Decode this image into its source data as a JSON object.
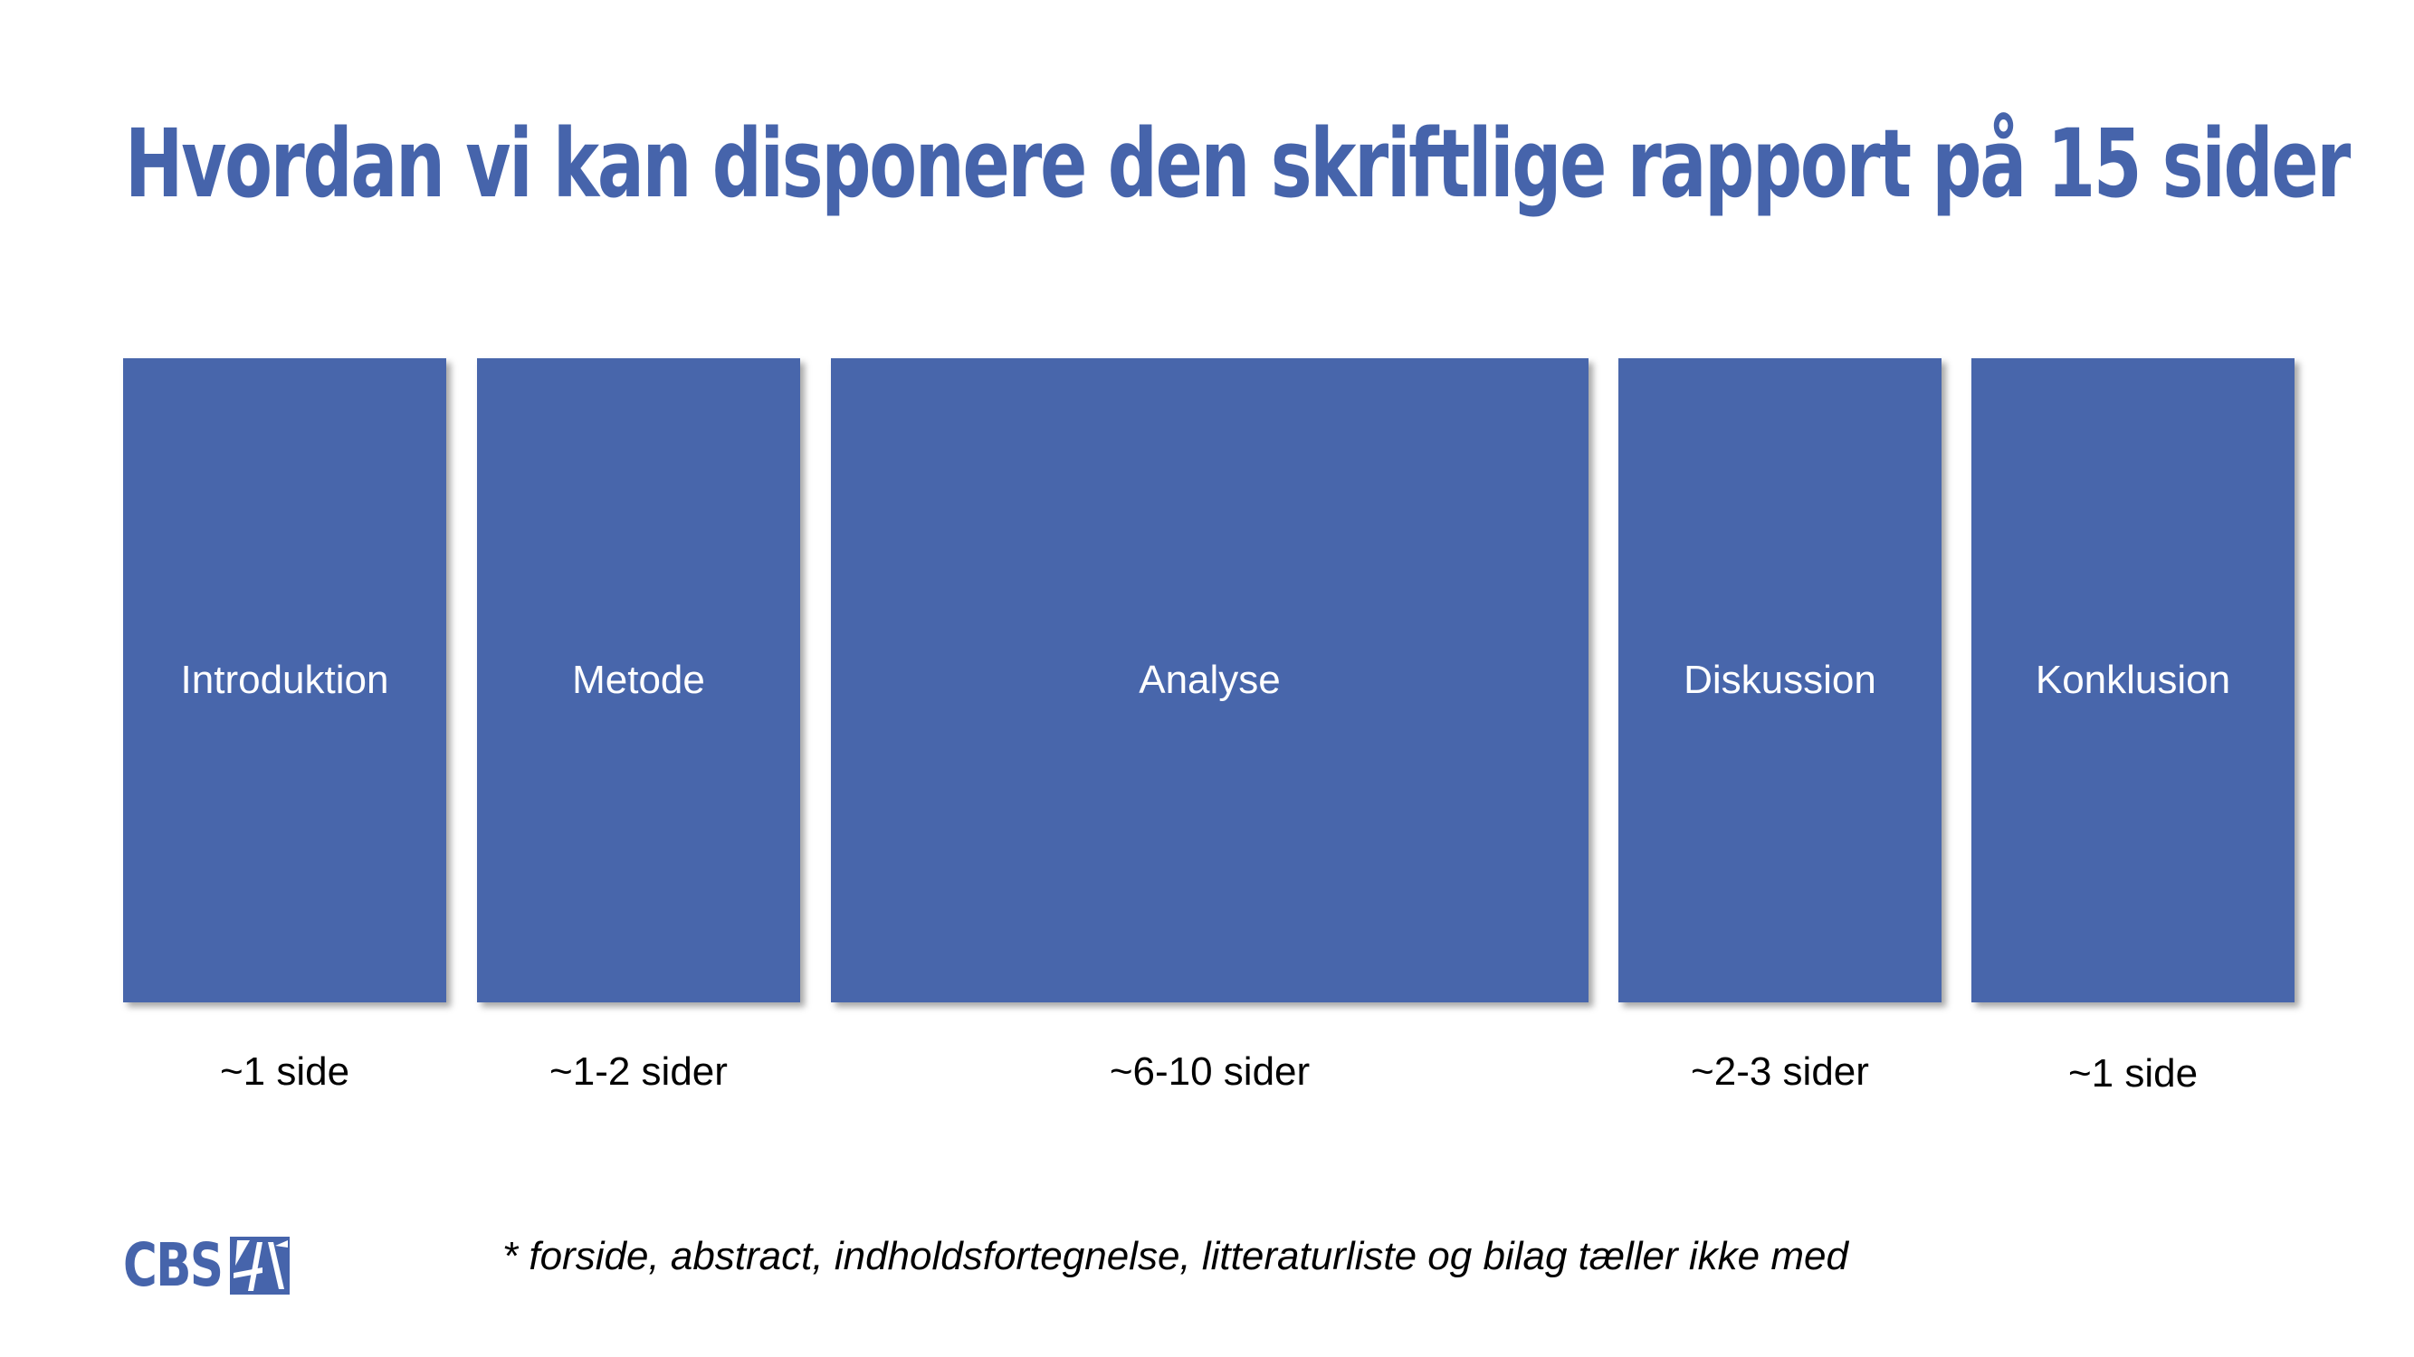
{
  "title": "Hvordan vi kan disponere den skriftlige rapport på 15 sider",
  "sections": [
    {
      "label": "Introduktion",
      "pages": "~1 side"
    },
    {
      "label": "Metode",
      "pages": "~1-2 sider"
    },
    {
      "label": "Analyse",
      "pages": "~6-10 sider"
    },
    {
      "label": "Diskussion",
      "pages": "~2-3 sider"
    },
    {
      "label": "Konklusion",
      "pages": "~1 side"
    }
  ],
  "footnote": "* forside, abstract, indholdsfortegnelse, litteraturliste og bilag tæller ikke med",
  "logo": {
    "text": "CBS",
    "icon": "cbs-logo-icon"
  },
  "colors": {
    "accent": "#4664ab",
    "box": "#4866ab",
    "text": "#000000"
  }
}
